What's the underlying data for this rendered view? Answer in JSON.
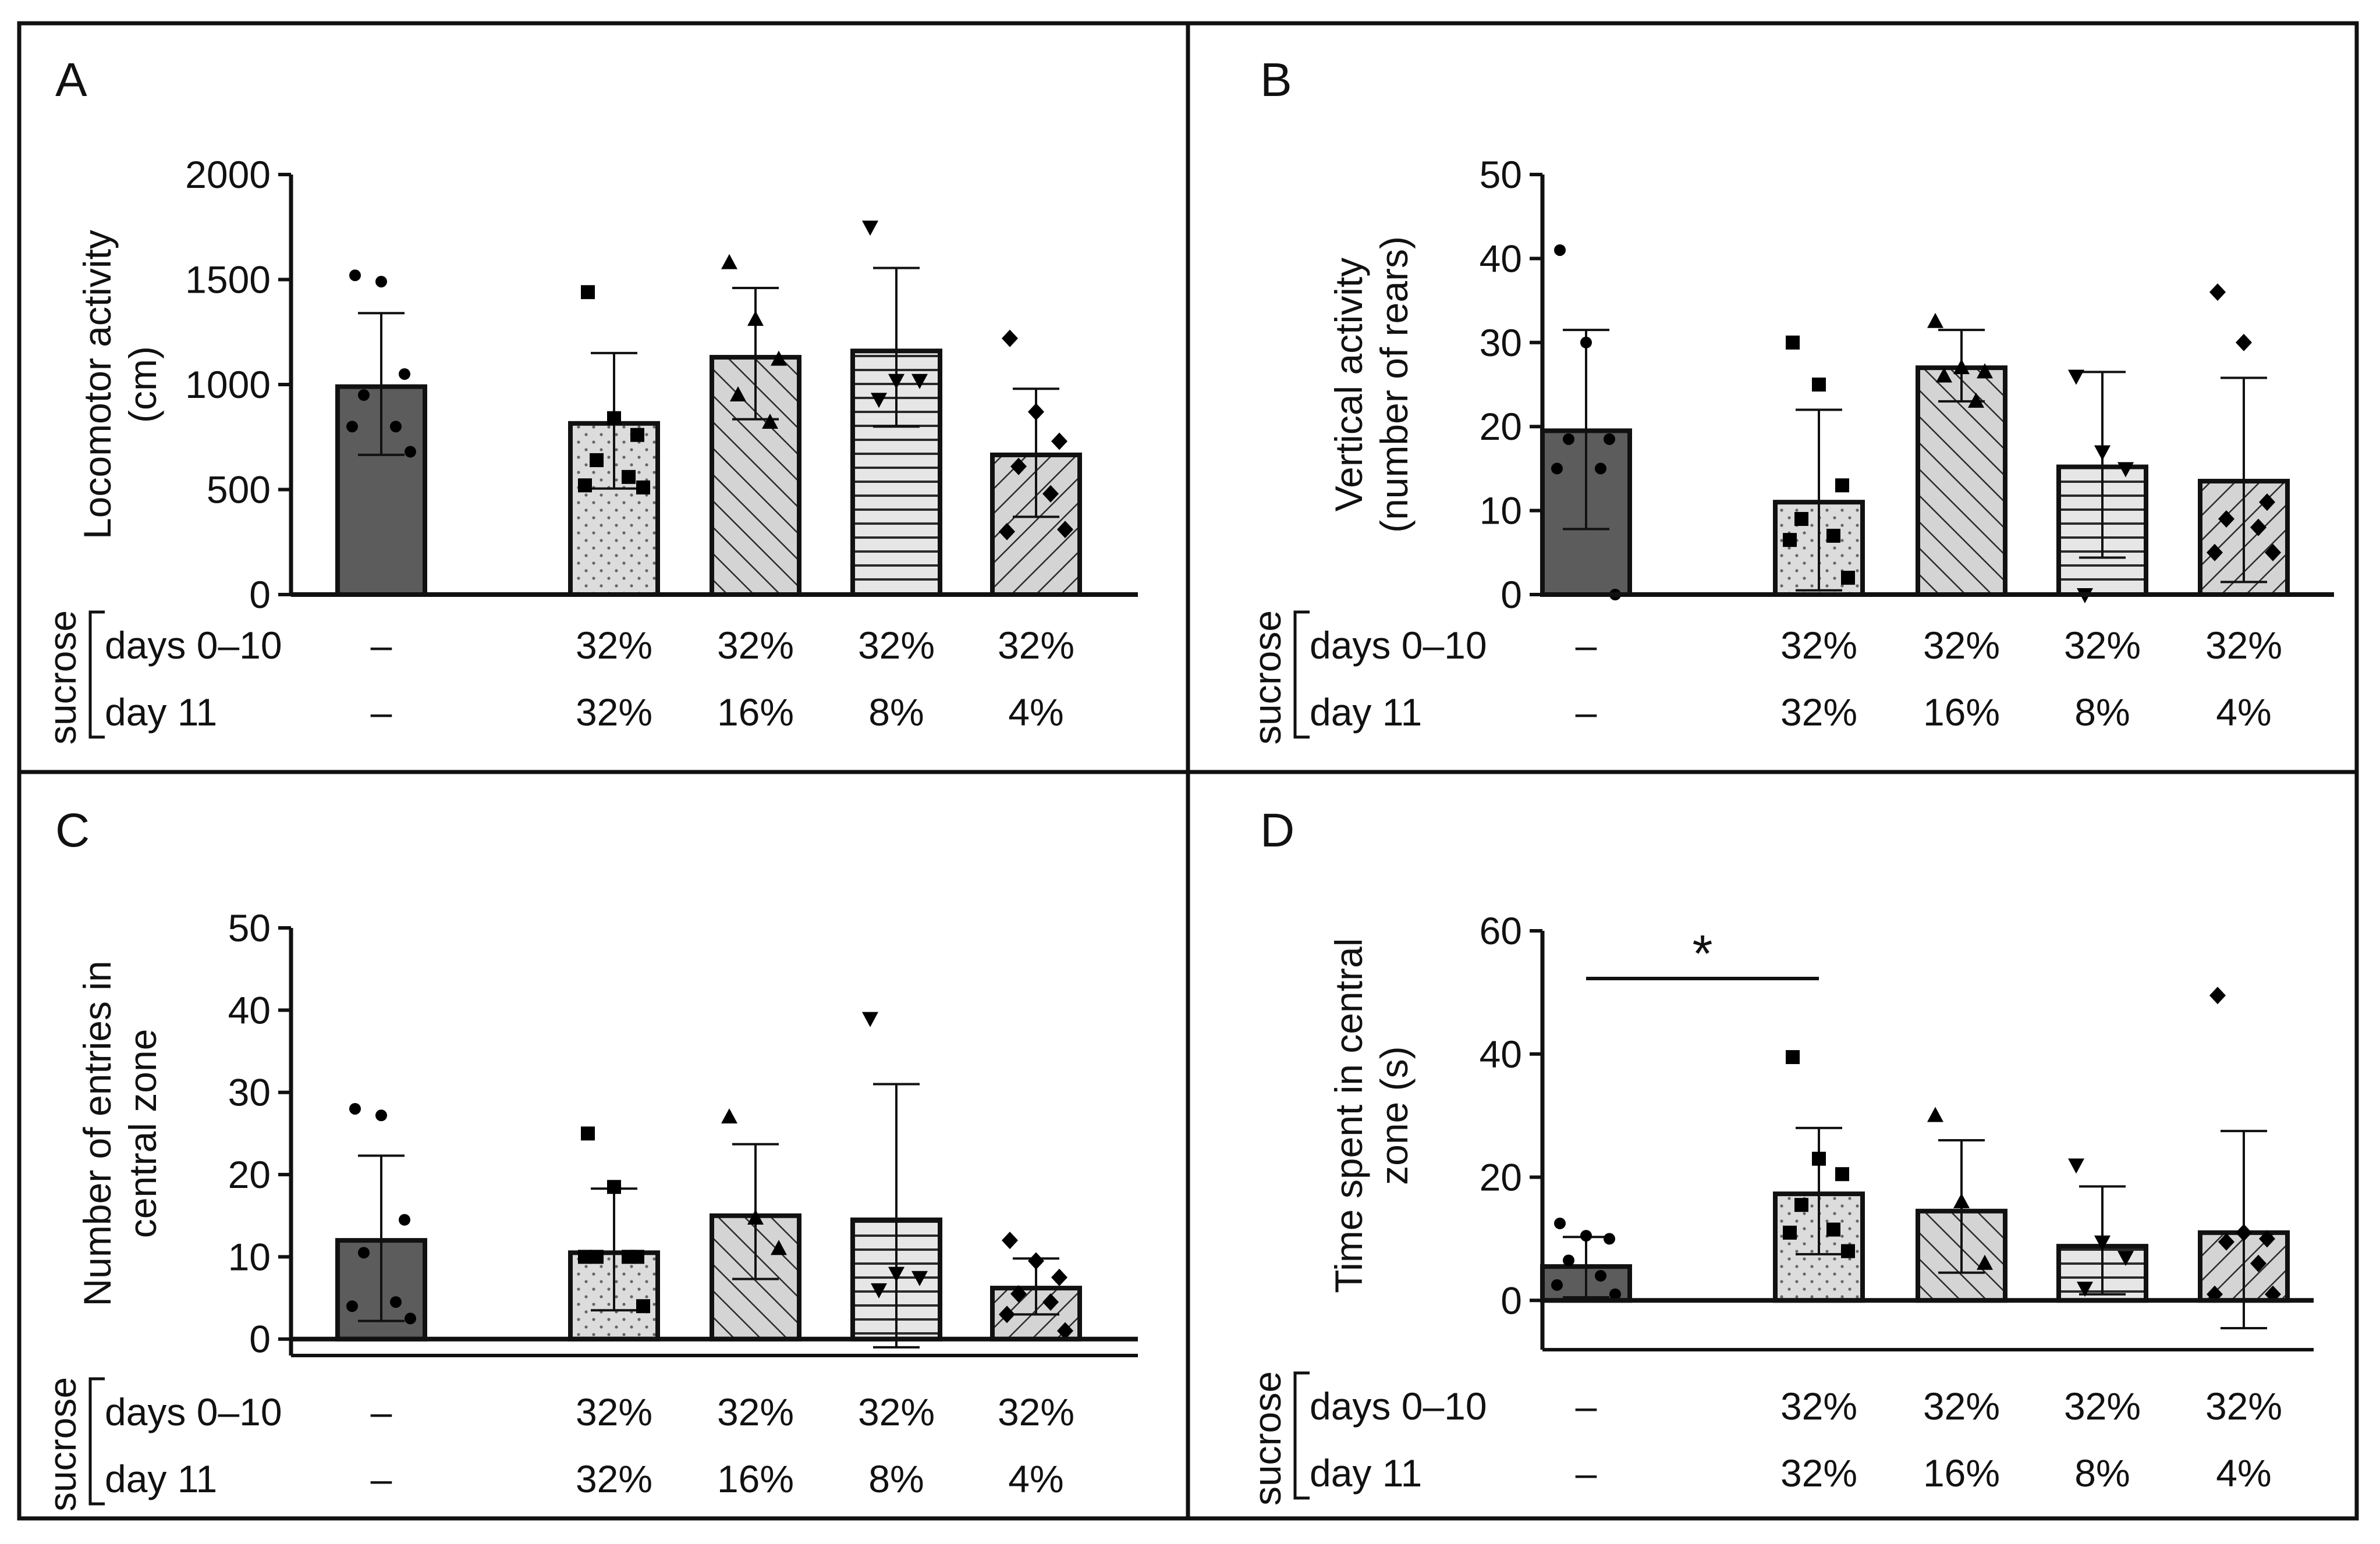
{
  "colors": {
    "control_fill": "#5c5c5c",
    "pattern_fill": "#d9d9d9",
    "stroke": "#111111",
    "background": "#ffffff"
  },
  "table": {
    "factor_label": "sucrose",
    "rows": [
      "days 0–10",
      "day 11"
    ],
    "columns": [
      {
        "days_0_10": "–",
        "day_11": "–"
      },
      {
        "days_0_10": "32%",
        "day_11": "32%"
      },
      {
        "days_0_10": "32%",
        "day_11": "16%"
      },
      {
        "days_0_10": "32%",
        "day_11": "8%"
      },
      {
        "days_0_10": "32%",
        "day_11": "4%"
      }
    ]
  },
  "chart_data": [
    {
      "panel": "A",
      "type": "bar",
      "ylabel": [
        "Locomotor activity",
        "(cm)"
      ],
      "ylim": [
        0,
        2000
      ],
      "yticks": [
        0,
        500,
        1000,
        1500,
        2000
      ],
      "bars": [
        {
          "mean": 990,
          "err_low": 665,
          "err_high": 1340,
          "marker": "circle",
          "points": [
            1520,
            1490,
            1050,
            950,
            800,
            800,
            680
          ]
        },
        {
          "mean": 815,
          "err_low": 505,
          "err_high": 1150,
          "marker": "square",
          "points": [
            1440,
            840,
            760,
            640,
            560,
            520,
            510
          ]
        },
        {
          "mean": 1130,
          "err_low": 835,
          "err_high": 1460,
          "marker": "triangle-up",
          "points": [
            1580,
            1310,
            1120,
            950,
            820
          ]
        },
        {
          "mean": 1160,
          "err_low": 800,
          "err_high": 1555,
          "marker": "triangle-down",
          "points": [
            1750,
            1020,
            1020,
            930
          ]
        },
        {
          "mean": 665,
          "err_low": 370,
          "err_high": 980,
          "marker": "diamond",
          "points": [
            1220,
            870,
            730,
            610,
            480,
            300,
            310
          ]
        }
      ]
    },
    {
      "panel": "B",
      "type": "bar",
      "ylabel": [
        "Vertical activity",
        "(number of rears)"
      ],
      "ylim": [
        0,
        50
      ],
      "yticks": [
        0,
        10,
        20,
        30,
        40,
        50
      ],
      "bars": [
        {
          "mean": 19.5,
          "err_low": 7.8,
          "err_high": 31.5,
          "marker": "circle",
          "points": [
            41,
            30,
            18.5,
            18.5,
            15,
            15,
            0
          ]
        },
        {
          "mean": 11,
          "err_low": 0.5,
          "err_high": 22,
          "marker": "square",
          "points": [
            30,
            25,
            13,
            9,
            7,
            6.5,
            2
          ]
        },
        {
          "mean": 27,
          "err_low": 23,
          "err_high": 31.5,
          "marker": "triangle-up",
          "points": [
            32.5,
            27,
            26.5,
            26,
            23
          ]
        },
        {
          "mean": 15.2,
          "err_low": 4.4,
          "err_high": 26.5,
          "marker": "triangle-down",
          "points": [
            26,
            17,
            15,
            0
          ]
        },
        {
          "mean": 13.5,
          "err_low": 1.5,
          "err_high": 25.8,
          "marker": "diamond",
          "points": [
            36,
            30,
            11,
            9,
            8,
            5,
            5
          ]
        }
      ]
    },
    {
      "panel": "C",
      "type": "bar",
      "ylabel": [
        "Number of entries in",
        "central zone"
      ],
      "ylim": [
        -2,
        50
      ],
      "yticks": [
        0,
        10,
        20,
        30,
        40,
        50
      ],
      "bars": [
        {
          "mean": 12,
          "err_low": 2.2,
          "err_high": 22.3,
          "marker": "circle",
          "points": [
            28,
            27.2,
            14.5,
            10.5,
            4.5,
            4,
            2.5
          ]
        },
        {
          "mean": 10.5,
          "err_low": 3.5,
          "err_high": 18.3,
          "marker": "square",
          "points": [
            25,
            18.5,
            10,
            10,
            10,
            10,
            4
          ]
        },
        {
          "mean": 15,
          "err_low": 7.3,
          "err_high": 23.7,
          "marker": "triangle-up",
          "points": [
            27,
            14.7,
            11
          ]
        },
        {
          "mean": 14.5,
          "err_low": -1,
          "err_high": 31,
          "marker": "triangle-down",
          "points": [
            39,
            8,
            7.5,
            6
          ]
        },
        {
          "mean": 6.2,
          "err_low": 3,
          "err_high": 9.8,
          "marker": "diamond",
          "points": [
            12,
            9.5,
            7.5,
            5.5,
            4.5,
            3,
            1
          ]
        }
      ]
    },
    {
      "panel": "D",
      "type": "bar",
      "ylabel": [
        "Time spent in central",
        "zone (s)"
      ],
      "ylim": [
        -8,
        60
      ],
      "yticks": [
        0,
        20,
        40,
        60
      ],
      "significance": {
        "from_group": 0,
        "to_group": 1,
        "label": "*"
      },
      "bars": [
        {
          "mean": 5.5,
          "err_low": 0.5,
          "err_high": 10.3,
          "marker": "circle",
          "points": [
            12.5,
            10.5,
            10,
            6.5,
            4,
            2.5,
            1
          ]
        },
        {
          "mean": 17.3,
          "err_low": 7.5,
          "err_high": 28,
          "marker": "square",
          "points": [
            39.5,
            23,
            20.5,
            15.5,
            11.5,
            11,
            8
          ]
        },
        {
          "mean": 14.5,
          "err_low": 4.5,
          "err_high": 26,
          "marker": "triangle-up",
          "points": [
            30,
            16,
            6
          ]
        },
        {
          "mean": 8.8,
          "err_low": 1,
          "err_high": 18.5,
          "marker": "triangle-down",
          "points": [
            22,
            9.5,
            7,
            2
          ]
        },
        {
          "mean": 11,
          "err_low": -4.5,
          "err_high": 27.5,
          "marker": "diamond",
          "points": [
            49.5,
            11,
            10,
            9.5,
            6,
            1,
            1
          ]
        }
      ]
    }
  ]
}
